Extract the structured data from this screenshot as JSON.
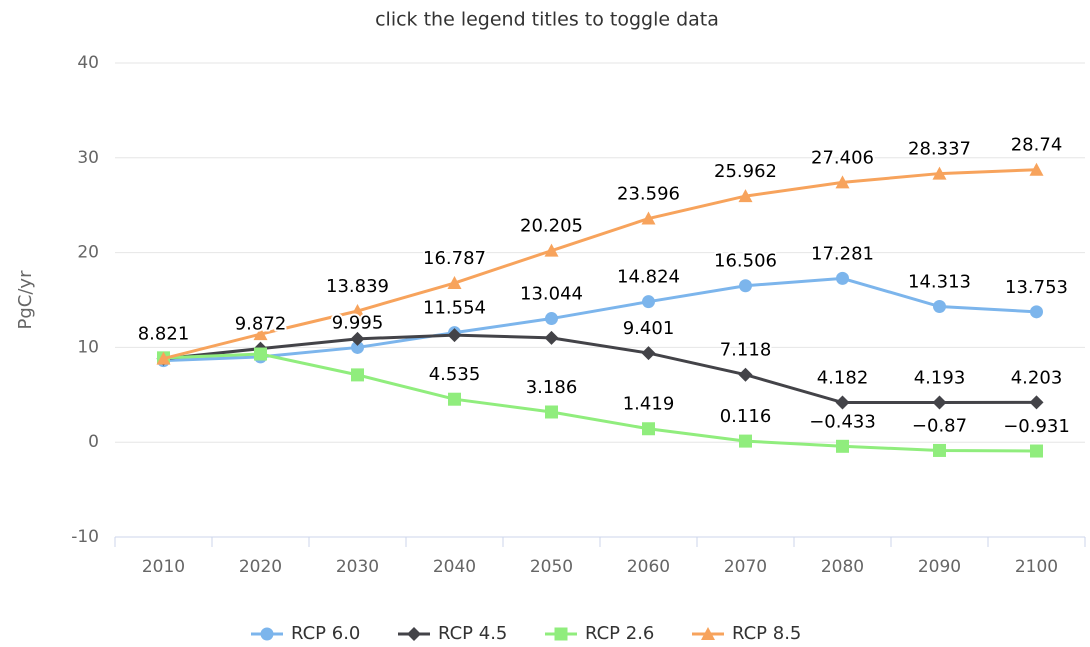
{
  "chart_data": {
    "type": "line",
    "subtitle": "click the legend titles to toggle data",
    "y_label": "PgC/yr",
    "categories": [
      "2010",
      "2020",
      "2030",
      "2040",
      "2050",
      "2060",
      "2070",
      "2080",
      "2090",
      "2100"
    ],
    "ylim": [
      -10,
      40
    ],
    "yticks": [
      -10,
      0,
      10,
      20,
      30,
      40
    ],
    "grid": true,
    "legend": "bottom",
    "series": [
      {
        "name": "RCP 6.0",
        "color": "#7cb5ec",
        "marker": "circle",
        "values": [
          8.6,
          9.0,
          9.995,
          11.554,
          13.044,
          14.824,
          16.506,
          17.281,
          14.313,
          13.753
        ],
        "value_labels": [
          null,
          null,
          "9.995",
          "11.554",
          "13.044",
          "14.824",
          "16.506",
          "17.281",
          "14.313",
          "13.753"
        ]
      },
      {
        "name": "RCP 4.5",
        "color": "#434348",
        "marker": "diamond",
        "values": [
          8.8,
          9.872,
          10.9,
          11.3,
          11.0,
          9.401,
          7.118,
          4.182,
          4.193,
          4.203
        ],
        "value_labels": [
          null,
          "9.872",
          null,
          null,
          null,
          "9.401",
          "7.118",
          "4.182",
          "4.193",
          "4.203"
        ]
      },
      {
        "name": "RCP 2.6",
        "color": "#90ed7d",
        "marker": "square",
        "values": [
          8.9,
          9.3,
          7.1,
          4.535,
          3.186,
          1.419,
          0.116,
          -0.433,
          -0.87,
          -0.931
        ],
        "value_labels": [
          null,
          null,
          null,
          "4.535",
          "3.186",
          "1.419",
          "0.116",
          "−0.433",
          "−0.87",
          "−0.931"
        ]
      },
      {
        "name": "RCP 8.5",
        "color": "#f7a35c",
        "marker": "triangle",
        "values": [
          8.821,
          11.4,
          13.839,
          16.787,
          20.205,
          23.596,
          25.962,
          27.406,
          28.337,
          28.74
        ],
        "value_labels": [
          "8.821",
          null,
          "13.839",
          "16.787",
          "20.205",
          "23.596",
          "25.962",
          "27.406",
          "28.337",
          "28.74"
        ]
      }
    ]
  }
}
